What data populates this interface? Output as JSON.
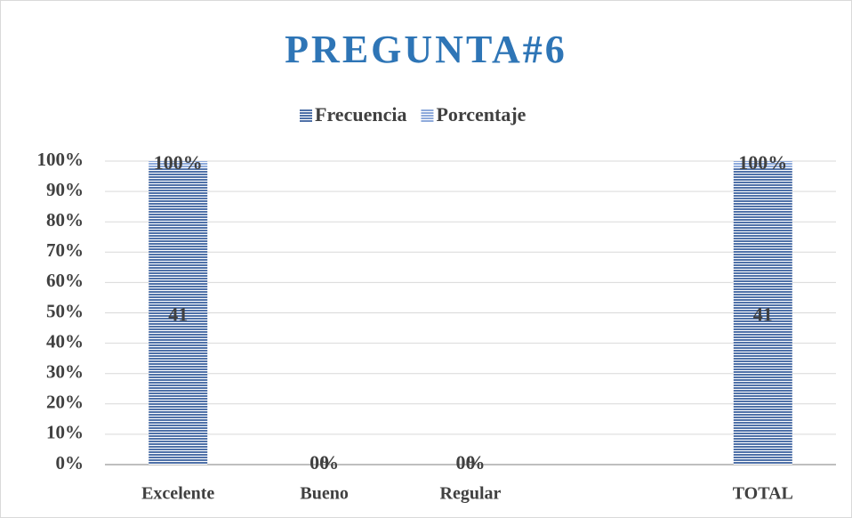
{
  "chart_data": {
    "type": "bar",
    "stacked": "percent",
    "title": "PREGUNTA#6",
    "title_color": "#2e75b6",
    "categories": [
      "Excelente",
      "Bueno",
      "Regular",
      null,
      "TOTAL"
    ],
    "series": [
      {
        "name": "Frecuencia",
        "color": "#4f71a8",
        "values": [
          41,
          0,
          0,
          null,
          41
        ],
        "value_labels": [
          "41",
          "0",
          "0",
          null,
          "41"
        ]
      },
      {
        "name": "Porcentaje",
        "color": "#8eaadb",
        "values": [
          1,
          0,
          0,
          null,
          1
        ],
        "value_labels": [
          "100%",
          "0%",
          "0%",
          null,
          "100%"
        ]
      }
    ],
    "ylim": [
      0,
      100
    ],
    "yticks": [
      {
        "value": 0,
        "label": "0%"
      },
      {
        "value": 10,
        "label": "10%"
      },
      {
        "value": 20,
        "label": "20%"
      },
      {
        "value": 30,
        "label": "30%"
      },
      {
        "value": 40,
        "label": "40%"
      },
      {
        "value": 50,
        "label": "50%"
      },
      {
        "value": 60,
        "label": "60%"
      },
      {
        "value": 70,
        "label": "70%"
      },
      {
        "value": 80,
        "label": "80%"
      },
      {
        "value": 90,
        "label": "90%"
      },
      {
        "value": 100,
        "label": "100%"
      }
    ],
    "grid": true,
    "legend": "top"
  }
}
